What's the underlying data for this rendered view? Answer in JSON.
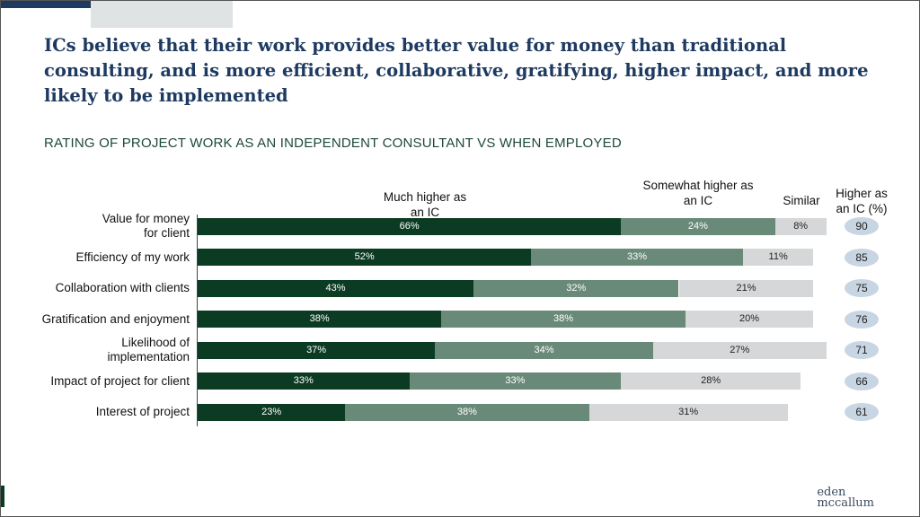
{
  "chart_data": {
    "type": "stacked-bar-horizontal",
    "title": "ICs believe that their work provides better value for money than traditional consulting, and is more efficient, collaborative, gratifying, higher impact, and more likely to be implemented",
    "subtitle": "RATING OF PROJECT WORK AS AN INDEPENDENT CONSULTANT VS WHEN EMPLOYED",
    "categories": [
      "Value for money\nfor client",
      "Efficiency of my work",
      "Collaboration with clients",
      "Gratification and enjoyment",
      "Likelihood of\nimplementation",
      "Impact of project for client",
      "Interest of project"
    ],
    "xlim": [
      0,
      100
    ],
    "series": [
      {
        "name": "Much higher as an IC",
        "color": "#0c3b24",
        "values": [
          66,
          52,
          43,
          38,
          37,
          33,
          23
        ],
        "value_labels": [
          "66%",
          "52%",
          "43%",
          "38%",
          "37%",
          "33%",
          "23%"
        ]
      },
      {
        "name": "Somewhat higher as an IC",
        "color": "#6a8a79",
        "values": [
          24,
          33,
          32,
          38,
          34,
          33,
          38
        ],
        "value_labels": [
          "24%",
          "33%",
          "32%",
          "38%",
          "34%",
          "33%",
          "38%"
        ]
      },
      {
        "name": "Similar",
        "color": "#d5d7d9",
        "values": [
          8,
          11,
          21,
          20,
          27,
          28,
          31
        ],
        "value_labels": [
          "8%",
          "11%",
          "21%",
          "20%",
          "27%",
          "28%",
          "31%"
        ]
      }
    ],
    "totals": {
      "name": "Higher as an IC (%)",
      "values": [
        90,
        85,
        75,
        76,
        71,
        66,
        61
      ]
    },
    "logo": [
      "eden",
      "mccallum"
    ]
  }
}
